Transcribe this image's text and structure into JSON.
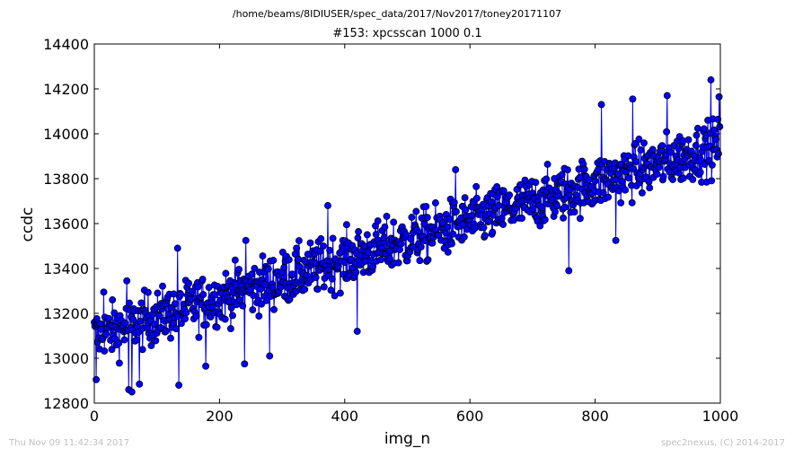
{
  "figure": {
    "suptitle": "/home/beams/8IDIUSER/spec_data/2017/Nov2017/toney20171107",
    "footer_left": "Thu Nov 09 11:42:34 2017",
    "footer_right": "spec2nexus, (C) 2014-2017"
  },
  "colors": {
    "series": "#0000ff",
    "marker_edge": "#000000"
  },
  "chart_data": {
    "type": "line",
    "title": "#153: xpcsscan 1000 0.1",
    "xlabel": "img_n",
    "ylabel": "ccdc",
    "xlim": [
      0,
      1000
    ],
    "ylim": [
      12800,
      14400
    ],
    "xticks": [
      0,
      200,
      400,
      600,
      800,
      1000
    ],
    "yticks": [
      12800,
      13000,
      13200,
      13400,
      13600,
      13800,
      14000,
      14200,
      14400
    ],
    "marker": "circle",
    "grid": false,
    "legend": "none",
    "n_points": 1000,
    "trend": {
      "start": 13100,
      "end": 13950
    },
    "noise_amplitude": 85,
    "notable_points": [
      {
        "x": 3,
        "y": 12905
      },
      {
        "x": 15,
        "y": 13295
      },
      {
        "x": 52,
        "y": 13345
      },
      {
        "x": 55,
        "y": 12860
      },
      {
        "x": 60,
        "y": 12850
      },
      {
        "x": 72,
        "y": 12885
      },
      {
        "x": 133,
        "y": 13490
      },
      {
        "x": 135,
        "y": 12880
      },
      {
        "x": 178,
        "y": 12965
      },
      {
        "x": 242,
        "y": 13525
      },
      {
        "x": 240,
        "y": 12975
      },
      {
        "x": 280,
        "y": 13010
      },
      {
        "x": 373,
        "y": 13680
      },
      {
        "x": 420,
        "y": 13120
      },
      {
        "x": 577,
        "y": 13840
      },
      {
        "x": 758,
        "y": 13390
      },
      {
        "x": 810,
        "y": 14130
      },
      {
        "x": 833,
        "y": 13525
      },
      {
        "x": 860,
        "y": 14155
      },
      {
        "x": 915,
        "y": 14170
      },
      {
        "x": 985,
        "y": 14240
      },
      {
        "x": 998,
        "y": 14165
      }
    ]
  }
}
